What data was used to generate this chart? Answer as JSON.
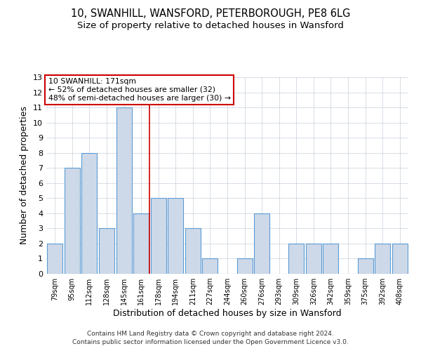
{
  "title1": "10, SWANHILL, WANSFORD, PETERBOROUGH, PE8 6LG",
  "title2": "Size of property relative to detached houses in Wansford",
  "xlabel": "Distribution of detached houses by size in Wansford",
  "ylabel": "Number of detached properties",
  "categories": [
    "79sqm",
    "95sqm",
    "112sqm",
    "128sqm",
    "145sqm",
    "161sqm",
    "178sqm",
    "194sqm",
    "211sqm",
    "227sqm",
    "244sqm",
    "260sqm",
    "276sqm",
    "293sqm",
    "309sqm",
    "326sqm",
    "342sqm",
    "359sqm",
    "375sqm",
    "392sqm",
    "408sqm"
  ],
  "values": [
    2,
    7,
    8,
    3,
    11,
    4,
    5,
    5,
    3,
    1,
    0,
    1,
    4,
    0,
    2,
    2,
    2,
    0,
    1,
    2,
    2
  ],
  "bar_color": "#cdd9e8",
  "bar_edge_color": "#5b9bd5",
  "red_line_index": 5,
  "ylim": [
    0,
    13
  ],
  "yticks": [
    0,
    1,
    2,
    3,
    4,
    5,
    6,
    7,
    8,
    9,
    10,
    11,
    12,
    13
  ],
  "annotation_title": "10 SWANHILL: 171sqm",
  "annotation_line1": "← 52% of detached houses are smaller (32)",
  "annotation_line2": "48% of semi-detached houses are larger (30) →",
  "annotation_box_color": "#ffffff",
  "annotation_box_edge": "#cc0000",
  "grid_color": "#c8d0dc",
  "footer1": "Contains HM Land Registry data © Crown copyright and database right 2024.",
  "footer2": "Contains public sector information licensed under the Open Government Licence v3.0.",
  "bg_color": "#ffffff",
  "title1_fontsize": 10.5,
  "title2_fontsize": 9.5,
  "xlabel_fontsize": 9,
  "ylabel_fontsize": 9,
  "footer_fontsize": 6.5
}
